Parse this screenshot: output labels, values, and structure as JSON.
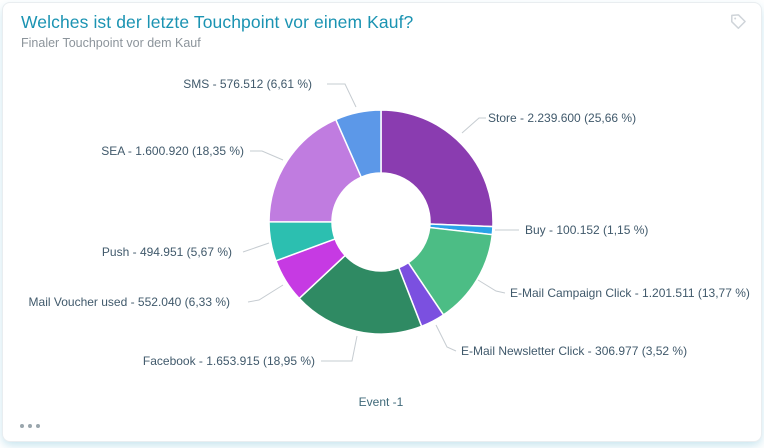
{
  "card": {
    "title": "Welches ist der letzte Touchpoint vor einem Kauf?",
    "subtitle": "Finaler Touchpoint vor dem Kauf",
    "title_color": "#1A93B2",
    "icons": [
      "tag-icon",
      "ellipsis-menu-icon"
    ]
  },
  "chart_data": {
    "type": "pie",
    "donut": true,
    "title": "Welches ist der letzte Touchpoint vor einem Kauf?",
    "subtitle": "Finaler Touchpoint vor dem Kauf",
    "legend_position": "none",
    "event_label": "Event -1",
    "label_color": "#40596B",
    "series": [
      {
        "label": "Store",
        "value": 2239600,
        "value_display": "2.239.600",
        "percent": 25.66,
        "percent_display": "25,66 %",
        "display": "Store - 2.239.600 (25,66 %)",
        "color": "#8A3CB0"
      },
      {
        "label": "Buy",
        "value": 100152,
        "value_display": "100.152",
        "percent": 1.15,
        "percent_display": "1,15 %",
        "display": "Buy - 100.152 (1,15 %)",
        "color": "#2AA2E8"
      },
      {
        "label": "E-Mail Campaign Click",
        "value": 1201511,
        "value_display": "1.201.511",
        "percent": 13.77,
        "percent_display": "13,77 %",
        "display": "E-Mail Campaign Click - 1.201.511 (13,77 %)",
        "color": "#4CBD85"
      },
      {
        "label": "E-Mail Newsletter Click",
        "value": 306977,
        "value_display": "306.977",
        "percent": 3.52,
        "percent_display": "3,52 %",
        "display": "E-Mail Newsletter Click - 306.977 (3,52 %)",
        "color": "#7B50E0"
      },
      {
        "label": "Facebook",
        "value": 1653915,
        "value_display": "1.653.915",
        "percent": 18.95,
        "percent_display": "18,95 %",
        "display": "Facebook - 1.653.915 (18,95 %)",
        "color": "#2F8A63"
      },
      {
        "label": "Mail Voucher used",
        "value": 552040,
        "value_display": "552.040",
        "percent": 6.33,
        "percent_display": "6,33 %",
        "display": "Mail Voucher used - 552.040 (6,33 %)",
        "color": "#C63AE3"
      },
      {
        "label": "Push",
        "value": 494951,
        "value_display": "494.951",
        "percent": 5.67,
        "percent_display": "5,67 %",
        "display": "Push - 494.951 (5,67 %)",
        "color": "#2CBFB0"
      },
      {
        "label": "SEA",
        "value": 1600920,
        "value_display": "1.600.920",
        "percent": 18.35,
        "percent_display": "18,35 %",
        "display": "SEA - 1.600.920 (18,35 %)",
        "color": "#C07CE0"
      },
      {
        "label": "SMS",
        "value": 576512,
        "value_display": "576.512",
        "percent": 6.61,
        "percent_display": "6,61 %",
        "display": "SMS - 576.512 (6,61 %)",
        "color": "#5C98E8"
      }
    ]
  }
}
